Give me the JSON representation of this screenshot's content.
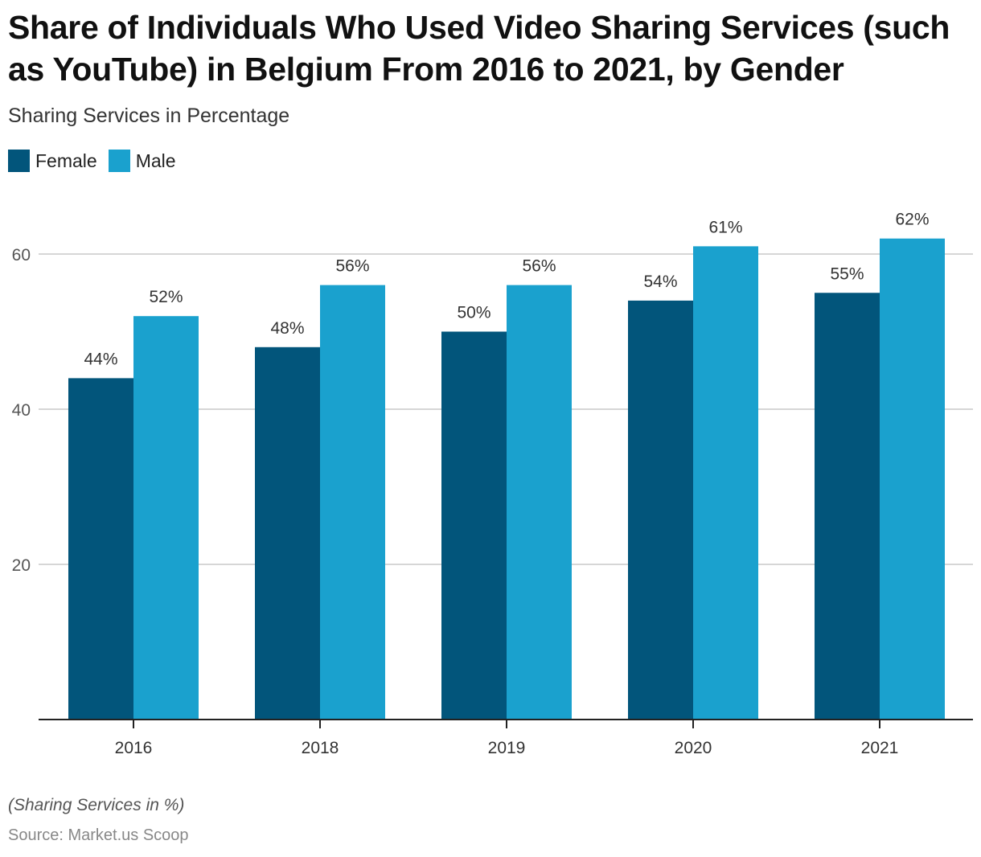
{
  "chart_data": {
    "type": "bar",
    "title": "Share of Individuals Who Used Video Sharing Services (such as YouTube) in Belgium From 2016 to 2021, by Gender",
    "subtitle": "Sharing Services in Percentage",
    "xlabel": "",
    "ylabel": "",
    "categories": [
      "2016",
      "2018",
      "2019",
      "2020",
      "2021"
    ],
    "series": [
      {
        "name": "Female",
        "color": "#02557b",
        "values": [
          44,
          48,
          50,
          54,
          55
        ],
        "labels": [
          "44%",
          "48%",
          "50%",
          "54%",
          "55%"
        ]
      },
      {
        "name": "Male",
        "color": "#1aa1ce",
        "values": [
          52,
          56,
          56,
          61,
          62
        ],
        "labels": [
          "52%",
          "56%",
          "56%",
          "61%",
          "62%"
        ]
      }
    ],
    "ylim": [
      0,
      60
    ],
    "yticks": [
      20,
      40,
      60
    ],
    "ytick_labels": [
      "20",
      "40",
      "60"
    ],
    "grid": true,
    "legend_position": "top-left",
    "note": "(Sharing Services in %)",
    "source": "Source: Market.us Scoop"
  }
}
